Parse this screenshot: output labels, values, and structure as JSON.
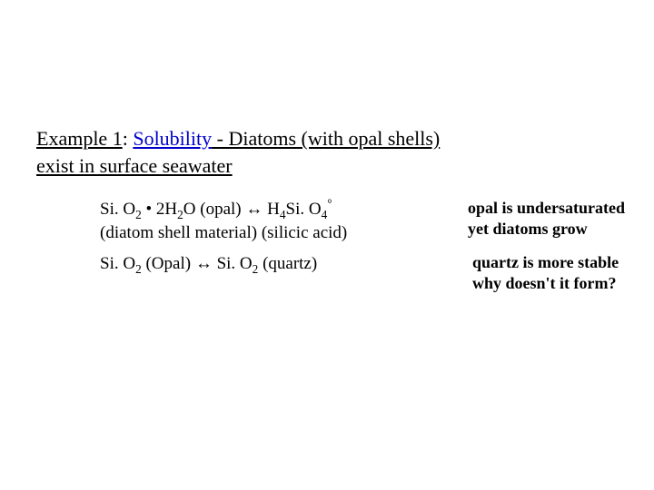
{
  "heading": {
    "label": "Example 1",
    "sep": ":  ",
    "topic": "Solubility",
    "rest_line1": " - Diatoms (with opal shells)",
    "rest_line2": "exist in surface seawater"
  },
  "eq1": {
    "lhs_pre": "Si. O",
    "lhs_sub1": "2",
    "lhs_mid": " • 2H",
    "lhs_sub2": "2",
    "lhs_post": "O  (opal)   ",
    "arrow": "↔",
    "rhs_pre": "    H",
    "rhs_sub1": "4",
    "rhs_mid": "Si. O",
    "rhs_sub2": "4",
    "rhs_sup": "°",
    "sub_lhs": "(diatom shell material)        ",
    "sub_rhs": "(silicic acid)"
  },
  "eq2": {
    "lhs_pre": "Si. O",
    "lhs_sub": "2",
    "lhs_post": " (Opal)  ",
    "arrow": "↔",
    "rhs_pre": " Si. O",
    "rhs_sub": "2",
    "rhs_post": " (quartz)"
  },
  "note1": {
    "line1": "opal is undersaturated",
    "line2": "yet diatoms grow"
  },
  "note2": {
    "line1": "quartz is more stable",
    "line2": "why doesn't it form?"
  },
  "colors": {
    "topic": "#0000cc",
    "text": "#000000",
    "background": "#ffffff"
  },
  "fonts": {
    "body_family": "Times New Roman",
    "heading_size_pt": 17,
    "eq_size_pt": 14,
    "note_size_pt": 14
  }
}
